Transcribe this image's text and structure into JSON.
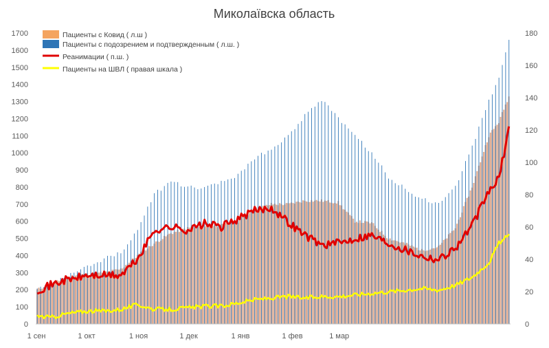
{
  "chart_data": {
    "type": "bar",
    "title": "Миколаївска область",
    "x_tick_labels": [
      "1 сен",
      "1 окт",
      "1 ноя",
      "1 дек",
      "1 янв",
      "1 фев",
      "1 мар"
    ],
    "y_left": {
      "min": 0,
      "max": 1700,
      "step": 100
    },
    "y_right": {
      "min": 0,
      "max": 180,
      "step": 20
    },
    "grid": false,
    "legend_placement": "top-left",
    "series": [
      {
        "name": "Пациенты с Ковид ( л.ш )",
        "type": "bar",
        "axis": "left",
        "color": "#F4A460",
        "anchors": [
          [
            0,
            200
          ],
          [
            8,
            235
          ],
          [
            16,
            260
          ],
          [
            22,
            285
          ],
          [
            30,
            290
          ],
          [
            40,
            300
          ],
          [
            50,
            320
          ],
          [
            60,
            400
          ],
          [
            70,
            470
          ],
          [
            80,
            530
          ],
          [
            90,
            560
          ],
          [
            100,
            570
          ],
          [
            110,
            575
          ],
          [
            120,
            600
          ],
          [
            130,
            670
          ],
          [
            140,
            700
          ],
          [
            150,
            700
          ],
          [
            160,
            720
          ],
          [
            170,
            720
          ],
          [
            180,
            710
          ],
          [
            190,
            600
          ],
          [
            200,
            590
          ],
          [
            210,
            500
          ],
          [
            220,
            470
          ],
          [
            230,
            430
          ],
          [
            240,
            450
          ],
          [
            250,
            560
          ],
          [
            260,
            800
          ],
          [
            270,
            1100
          ],
          [
            276,
            1180
          ],
          [
            282,
            1330
          ]
        ]
      },
      {
        "name": "Пациенты с подозрением и подтвержденным ( л.ш. )",
        "type": "bar",
        "axis": "left",
        "color": "#2E75B6",
        "anchors": [
          [
            0,
            210
          ],
          [
            8,
            230
          ],
          [
            16,
            270
          ],
          [
            22,
            300
          ],
          [
            30,
            340
          ],
          [
            40,
            380
          ],
          [
            50,
            420
          ],
          [
            60,
            550
          ],
          [
            70,
            760
          ],
          [
            80,
            830
          ],
          [
            90,
            800
          ],
          [
            100,
            790
          ],
          [
            110,
            830
          ],
          [
            120,
            870
          ],
          [
            130,
            970
          ],
          [
            140,
            1020
          ],
          [
            150,
            1100
          ],
          [
            160,
            1220
          ],
          [
            170,
            1310
          ],
          [
            180,
            1200
          ],
          [
            190,
            1100
          ],
          [
            200,
            1000
          ],
          [
            210,
            860
          ],
          [
            220,
            790
          ],
          [
            230,
            730
          ],
          [
            240,
            700
          ],
          [
            250,
            800
          ],
          [
            260,
            1040
          ],
          [
            270,
            1300
          ],
          [
            276,
            1430
          ],
          [
            282,
            1670
          ]
        ]
      },
      {
        "name": "Реанимации ( п.ш. )",
        "type": "line",
        "axis": "right",
        "color": "#E00000",
        "anchors": [
          [
            0,
            21
          ],
          [
            8,
            24
          ],
          [
            16,
            27
          ],
          [
            22,
            28
          ],
          [
            30,
            30
          ],
          [
            40,
            30
          ],
          [
            50,
            30
          ],
          [
            60,
            40
          ],
          [
            70,
            58
          ],
          [
            80,
            60
          ],
          [
            90,
            58
          ],
          [
            100,
            62
          ],
          [
            110,
            60
          ],
          [
            120,
            65
          ],
          [
            130,
            70
          ],
          [
            140,
            72
          ],
          [
            150,
            63
          ],
          [
            160,
            55
          ],
          [
            170,
            49
          ],
          [
            180,
            50
          ],
          [
            190,
            53
          ],
          [
            200,
            55
          ],
          [
            210,
            50
          ],
          [
            220,
            46
          ],
          [
            230,
            42
          ],
          [
            240,
            40
          ],
          [
            250,
            47
          ],
          [
            260,
            61
          ],
          [
            270,
            82
          ],
          [
            276,
            90
          ],
          [
            282,
            121
          ]
        ]
      },
      {
        "name": "Пациенты на ШВЛ ( правая шкала )",
        "type": "line",
        "axis": "right",
        "color": "#FFFF00",
        "anchors": [
          [
            0,
            5
          ],
          [
            8,
            4
          ],
          [
            16,
            6
          ],
          [
            22,
            7
          ],
          [
            30,
            8
          ],
          [
            40,
            8
          ],
          [
            50,
            9
          ],
          [
            60,
            12
          ],
          [
            70,
            9
          ],
          [
            80,
            9
          ],
          [
            90,
            10
          ],
          [
            100,
            11
          ],
          [
            110,
            11
          ],
          [
            120,
            13
          ],
          [
            130,
            15
          ],
          [
            140,
            16
          ],
          [
            150,
            17
          ],
          [
            160,
            16
          ],
          [
            170,
            17
          ],
          [
            180,
            17
          ],
          [
            190,
            18
          ],
          [
            200,
            19
          ],
          [
            210,
            20
          ],
          [
            220,
            21
          ],
          [
            230,
            22
          ],
          [
            240,
            21
          ],
          [
            250,
            24
          ],
          [
            260,
            29
          ],
          [
            270,
            38
          ],
          [
            276,
            50
          ],
          [
            282,
            55
          ]
        ]
      }
    ]
  }
}
